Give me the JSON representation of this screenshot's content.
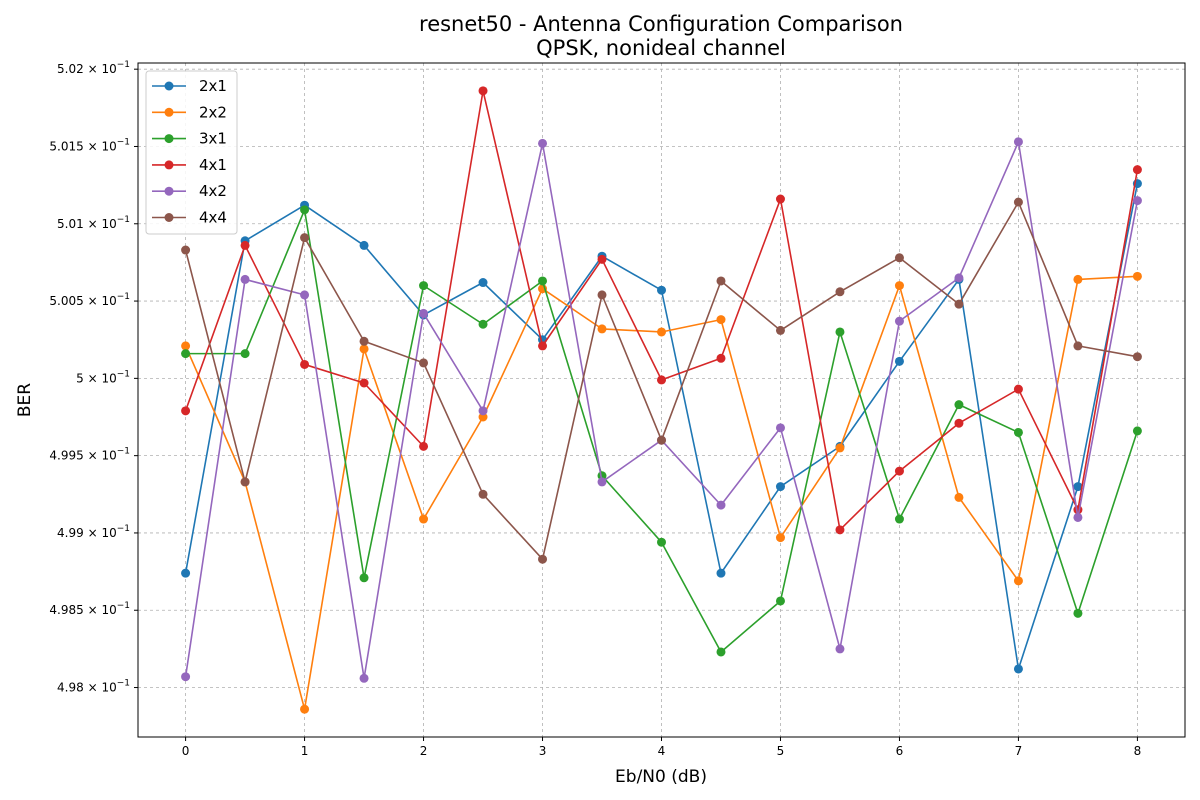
{
  "chart_data": {
    "type": "line",
    "title": "resnet50 - Antenna Configuration Comparison",
    "subtitle": "QPSK, nonideal channel",
    "xlabel": "Eb/N0 (dB)",
    "ylabel": "BER",
    "xlim": [
      -0.4,
      8.4
    ],
    "ylim": [
      0.49768,
      0.50204
    ],
    "x_ticks": [
      0,
      1,
      2,
      3,
      4,
      5,
      6,
      7,
      8
    ],
    "x_tick_labels": [
      "0",
      "1",
      "2",
      "3",
      "4",
      "5",
      "6",
      "7",
      "8"
    ],
    "y_ticks": [
      0.498,
      0.4985,
      0.499,
      0.4995,
      0.5,
      0.5005,
      0.501,
      0.5015,
      0.502
    ],
    "y_tick_labels": [
      {
        "mantissa": "4.98",
        "exponent": "−1"
      },
      {
        "mantissa": "4.985",
        "exponent": "−1"
      },
      {
        "mantissa": "4.99",
        "exponent": "−1"
      },
      {
        "mantissa": "4.995",
        "exponent": "−1"
      },
      {
        "mantissa": "5",
        "exponent": "−1"
      },
      {
        "mantissa": "5.005",
        "exponent": "−1"
      },
      {
        "mantissa": "5.01",
        "exponent": "−1"
      },
      {
        "mantissa": "5.015",
        "exponent": "−1"
      },
      {
        "mantissa": "5.02",
        "exponent": "−1"
      }
    ],
    "grid": true,
    "grid_style": "dashed",
    "legend_position": "top-left",
    "x": [
      0,
      0.5,
      1,
      1.5,
      2,
      2.5,
      3,
      3.5,
      4,
      4.5,
      5,
      5.5,
      6,
      6.5,
      7,
      7.5,
      8
    ],
    "series": [
      {
        "name": "2x1",
        "color": "#1f77b4",
        "values": [
          0.49874,
          0.50089,
          0.50112,
          0.50086,
          0.50041,
          0.50062,
          0.50025,
          0.50079,
          0.50057,
          0.49874,
          0.4993,
          0.49956,
          0.50011,
          0.50064,
          0.49812,
          0.4993,
          0.50126
        ]
      },
      {
        "name": "2x2",
        "color": "#ff7f0e",
        "values": [
          0.50021,
          0.49933,
          0.49786,
          0.50019,
          0.49909,
          0.49975,
          0.50058,
          0.50032,
          0.5003,
          0.50038,
          0.49897,
          0.49955,
          0.5006,
          0.49923,
          0.49869,
          0.50064,
          0.50066
        ]
      },
      {
        "name": "3x1",
        "color": "#2ca02c",
        "values": [
          0.50016,
          0.50016,
          0.50109,
          0.49871,
          0.5006,
          0.50035,
          0.50063,
          0.49937,
          0.49894,
          0.49823,
          0.49856,
          0.5003,
          0.49909,
          0.49983,
          0.49965,
          0.49848,
          0.49966
        ]
      },
      {
        "name": "4x1",
        "color": "#d62728",
        "values": [
          0.49979,
          0.50086,
          0.50009,
          0.49997,
          0.49956,
          0.50186,
          0.50021,
          0.50077,
          0.49999,
          0.50013,
          0.50116,
          0.49902,
          0.4994,
          0.49971,
          0.49993,
          0.49915,
          0.50135
        ]
      },
      {
        "name": "4x2",
        "color": "#9467bd",
        "values": [
          0.49807,
          0.50064,
          0.50054,
          0.49806,
          0.50042,
          0.49979,
          0.50152,
          0.49933,
          0.4996,
          0.49918,
          0.49968,
          0.49825,
          0.50037,
          0.50065,
          0.50153,
          0.4991,
          0.50115
        ]
      },
      {
        "name": "4x4",
        "color": "#8c564b",
        "values": [
          0.50083,
          0.49933,
          0.50091,
          0.50024,
          0.5001,
          0.49925,
          0.49883,
          0.50054,
          0.4996,
          0.50063,
          0.50031,
          0.50056,
          0.50078,
          0.50048,
          0.50114,
          0.50021,
          0.50014
        ]
      }
    ]
  }
}
